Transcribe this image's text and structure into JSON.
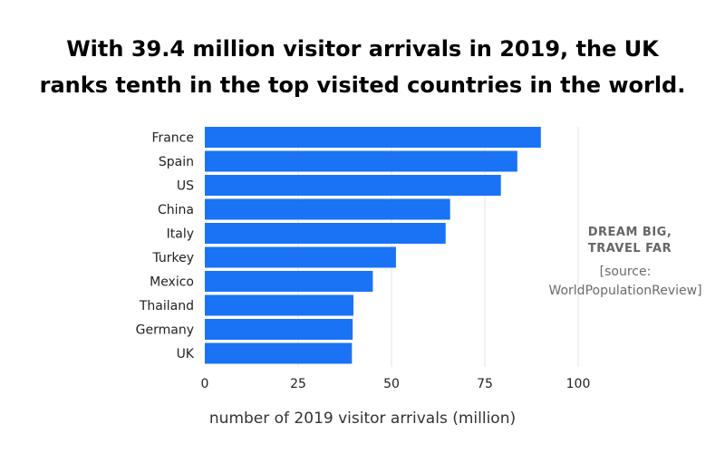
{
  "title_line1": "With 39.4 million visitor arrivals in 2019, the UK",
  "title_line2": "ranks tenth in the top visited countries in the world.",
  "brand_line1": "DREAM BIG,",
  "brand_line2": "TRAVEL FAR",
  "source_line1": "[source:",
  "source_line2": "WorldPopulationReview]",
  "colors": {
    "bar": "#1a73f5",
    "grid": "#e6e6e6",
    "text": "#222222"
  },
  "chart_data": {
    "type": "bar",
    "orientation": "horizontal",
    "categories": [
      "France",
      "Spain",
      "US",
      "China",
      "Italy",
      "Turkey",
      "Mexico",
      "Thailand",
      "Germany",
      "UK"
    ],
    "values": [
      90.0,
      83.7,
      79.3,
      65.7,
      64.5,
      51.2,
      45.0,
      39.8,
      39.6,
      39.4
    ],
    "xlabel": "number of 2019 visitor arrivals (million)",
    "ylabel": "",
    "xlim": [
      0,
      100
    ],
    "xticks": [
      0,
      25,
      50,
      75,
      100
    ],
    "grid": true
  }
}
